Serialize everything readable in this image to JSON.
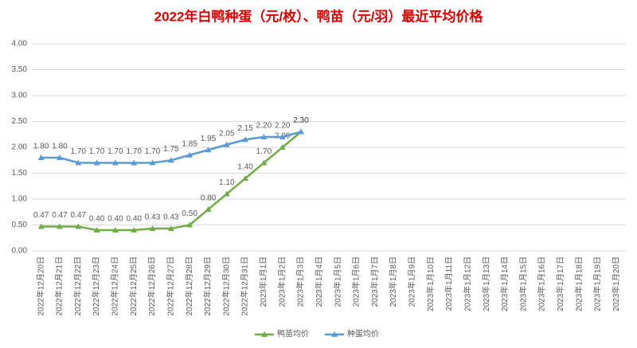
{
  "chart_data": {
    "type": "line",
    "title": "2022年白鸭种蛋（元/枚）、鸭苗（元/羽）最近平均价格",
    "categories": [
      "2022年12月20日",
      "2022年12月21日",
      "2022年12月22日",
      "2022年12月23日",
      "2022年12月24日",
      "2022年12月25日",
      "2022年12月26日",
      "2022年12月27日",
      "2022年12月28日",
      "2022年12月29日",
      "2022年12月30日",
      "2022年12月31日",
      "2023年1月1日",
      "2023年1月2日",
      "2023年1月3日",
      "2023年1月4日",
      "2023年1月5日",
      "2023年1月6日",
      "2023年1月7日",
      "2023年1月8日",
      "2023年1月9日",
      "2023年1月10日",
      "2023年1月11日",
      "2023年1月12日",
      "2023年1月13日",
      "2023年1月14日",
      "2023年1月15日",
      "2023年1月16日",
      "2023年1月17日",
      "2023年1月18日",
      "2023年1月19日",
      "2023年1月20日"
    ],
    "series": [
      {
        "name": "鸭苗均价",
        "color": "#70ad47",
        "values": [
          0.47,
          0.47,
          0.47,
          0.4,
          0.4,
          0.4,
          0.43,
          0.43,
          0.5,
          0.8,
          1.1,
          1.4,
          1.7,
          2.0,
          2.3,
          null,
          null,
          null,
          null,
          null,
          null,
          null,
          null,
          null,
          null,
          null,
          null,
          null,
          null,
          null,
          null,
          null
        ],
        "value_labels": [
          "0.47",
          "0.47",
          "0.47",
          "0.40",
          "0.40",
          "0.40",
          "0.43",
          "0.43",
          "0.50",
          "0.80",
          "1.10",
          "1.40",
          "1.70",
          "2.00",
          "2.30",
          null,
          null,
          null,
          null,
          null,
          null,
          null,
          null,
          null,
          null,
          null,
          null,
          null,
          null,
          null,
          null,
          null
        ]
      },
      {
        "name": "种蛋均价",
        "color": "#5b9bd5",
        "values": [
          1.8,
          1.8,
          1.7,
          1.7,
          1.7,
          1.7,
          1.7,
          1.75,
          1.85,
          1.95,
          2.05,
          2.15,
          2.2,
          2.2,
          2.3,
          null,
          null,
          null,
          null,
          null,
          null,
          null,
          null,
          null,
          null,
          null,
          null,
          null,
          null,
          null,
          null,
          null
        ],
        "value_labels": [
          "1.80",
          "1.80",
          "1.70",
          "1.70",
          "1.70",
          "1.70",
          "1.70",
          "1.75",
          "1.85",
          "1.95",
          "2.05",
          "2.15",
          "2.20",
          "2.20",
          "2.30",
          null,
          null,
          null,
          null,
          null,
          null,
          null,
          null,
          null,
          null,
          null,
          null,
          null,
          null,
          null,
          null,
          null
        ]
      }
    ],
    "ylim": [
      0,
      4
    ],
    "yticks": [
      {
        "value": 0,
        "label": "0.00"
      },
      {
        "value": 0.5,
        "label": "0.50"
      },
      {
        "value": 1,
        "label": "1.00"
      },
      {
        "value": 1.5,
        "label": "1.50"
      },
      {
        "value": 2,
        "label": "2.00"
      },
      {
        "value": 2.5,
        "label": "2.50"
      },
      {
        "value": 3,
        "label": "3.00"
      },
      {
        "value": 3.5,
        "label": "3.50"
      },
      {
        "value": 4,
        "label": "4.00"
      }
    ],
    "grid": true,
    "legend": "bottom"
  }
}
